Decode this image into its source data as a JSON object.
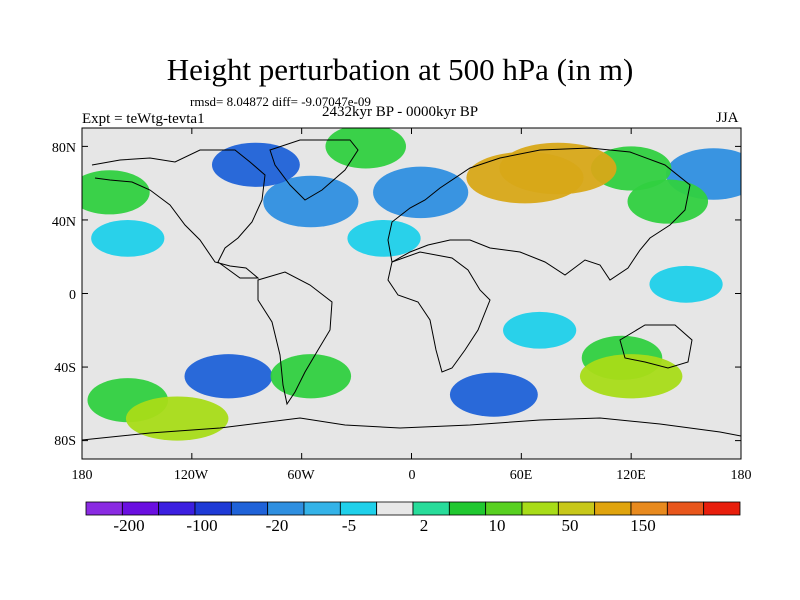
{
  "title": "Height perturbation at 500 hPa (in m)",
  "stats_text": "rmsd= 8.04872 diff= -9.07047e-09",
  "experiment_label": "Expt = teWtg-tevta1",
  "period_label": "2432kyr BP - 0000kyr BP",
  "season_label": "JJA",
  "axes": {
    "y_ticks": [
      "80N",
      "40N",
      "0",
      "40S",
      "80S"
    ],
    "x_ticks": [
      "180",
      "120W",
      "60W",
      "0",
      "60E",
      "120E",
      "180"
    ]
  },
  "colorbar": {
    "colors": [
      "#8a2be2",
      "#6a0fe0",
      "#3c1fe0",
      "#1e3ad6",
      "#1f62d8",
      "#2f8fe0",
      "#34b3e8",
      "#1fd0ea",
      "#e8e8e8",
      "#28dc9a",
      "#20c830",
      "#58d020",
      "#a8dc18",
      "#c8c81a",
      "#e0a40e",
      "#e88a1e",
      "#e8561c",
      "#e81e0c"
    ],
    "labels": [
      "-200",
      "-100",
      "-20",
      "-5",
      "2",
      "10",
      "50",
      "150"
    ]
  },
  "chart_data": {
    "type": "map-contour",
    "title": "Height perturbation at 500 hPa (in m)",
    "projection": "cylindrical equidistant",
    "lon_range": [
      -180,
      180
    ],
    "lat_range": [
      -90,
      90
    ],
    "lon_ticks": [
      "180",
      "120W",
      "60W",
      "0",
      "60E",
      "120E",
      "180"
    ],
    "lat_ticks": [
      "80N",
      "40N",
      "0",
      "40S",
      "80S"
    ],
    "contour_levels": [
      -200,
      -100,
      -20,
      -5,
      2,
      10,
      50,
      150
    ],
    "regions": [
      {
        "lon": 0,
        "lat": 0,
        "level": "neutral"
      },
      {
        "lon": 80,
        "lat": 68,
        "level": "high"
      },
      {
        "lon": 62,
        "lat": 63,
        "level": "high"
      },
      {
        "lon": 140,
        "lat": 50,
        "level": "positive"
      },
      {
        "lon": 120,
        "lat": 68,
        "level": "positive"
      },
      {
        "lon": -165,
        "lat": 55,
        "level": "positive"
      },
      {
        "lon": -25,
        "lat": 80,
        "level": "positive"
      },
      {
        "lon": -128,
        "lat": -68,
        "level": "positive-strong"
      },
      {
        "lon": -155,
        "lat": -58,
        "level": "positive"
      },
      {
        "lon": -55,
        "lat": -45,
        "level": "positive"
      },
      {
        "lon": 120,
        "lat": -45,
        "level": "positive-strong"
      },
      {
        "lon": 115,
        "lat": -35,
        "level": "positive"
      },
      {
        "lon": -85,
        "lat": 70,
        "level": "low-strong"
      },
      {
        "lon": -55,
        "lat": 50,
        "level": "low"
      },
      {
        "lon": 5,
        "lat": 55,
        "level": "low"
      },
      {
        "lon": -15,
        "lat": 30,
        "level": "low-weak"
      },
      {
        "lon": -155,
        "lat": 30,
        "level": "low-weak"
      },
      {
        "lon": 165,
        "lat": 65,
        "level": "low"
      },
      {
        "lon": -100,
        "lat": -45,
        "level": "low-strong"
      },
      {
        "lon": 45,
        "lat": -55,
        "level": "low-strong"
      },
      {
        "lon": 70,
        "lat": -20,
        "level": "low-weak"
      },
      {
        "lon": 150,
        "lat": 5,
        "level": "low-weak"
      }
    ]
  }
}
